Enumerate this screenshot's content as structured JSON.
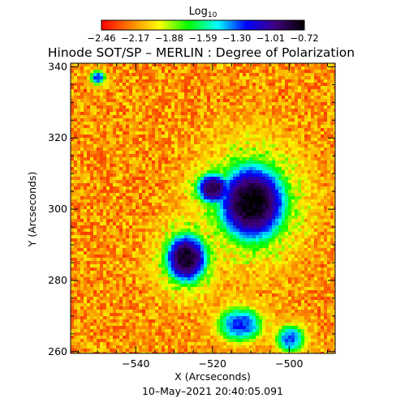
{
  "chart_data": {
    "type": "heatmap",
    "title": "Hinode SOT/SP – MERLIN : Degree of Polarization",
    "xlabel": "X (Arcseconds)",
    "ylabel": "Y (Arcseconds)",
    "date_label": "10–May–2021 20:40:05.091",
    "xlim": [
      -557,
      -488
    ],
    "ylim": [
      259.5,
      341
    ],
    "x_ticks": [
      -540,
      -520,
      -500
    ],
    "y_ticks": [
      260,
      280,
      300,
      320,
      340
    ],
    "x_tick_labels": [
      "−540",
      "−520",
      "−500"
    ],
    "y_tick_labels": [
      "260",
      "280",
      "300",
      "320",
      "340"
    ],
    "grid": false,
    "colorbar": {
      "title_base": "Log",
      "title_sub": "10",
      "range": [
        -2.46,
        -0.72
      ],
      "ticks": [
        -2.46,
        -2.17,
        -1.88,
        -1.59,
        -1.3,
        -1.01,
        -0.72
      ],
      "tick_labels": [
        "−2.46",
        "−2.17",
        "−1.88",
        "−1.59",
        "−1.30",
        "−1.01",
        "−0.72"
      ],
      "colors": [
        "#ff0000",
        "#ff8000",
        "#ffff00",
        "#00ff00",
        "#00ffff",
        "#0000ff",
        "#400080",
        "#000000"
      ]
    },
    "features": [
      {
        "x": -510,
        "y": 302,
        "rx": 9,
        "ry": 11,
        "peak": -0.72
      },
      {
        "x": -527,
        "y": 286.5,
        "rx": 5.5,
        "ry": 7,
        "peak": -0.78
      },
      {
        "x": -520,
        "y": 306,
        "rx": 4.5,
        "ry": 4.5,
        "peak": -0.85
      },
      {
        "x": -513,
        "y": 268,
        "rx": 6,
        "ry": 5,
        "peak": -1.25
      },
      {
        "x": -500,
        "y": 264,
        "rx": 4,
        "ry": 4,
        "peak": -1.3
      },
      {
        "x": -550,
        "y": 337,
        "rx": 2,
        "ry": 2,
        "peak": -1.25
      }
    ]
  }
}
